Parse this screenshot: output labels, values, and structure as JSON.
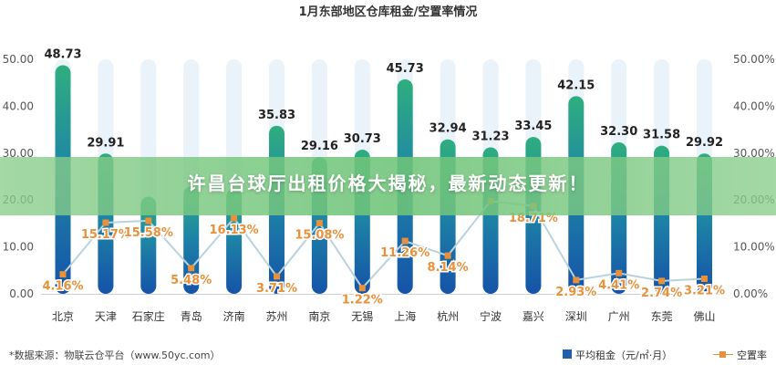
{
  "chart_data": {
    "type": "bar",
    "title": "1月东部地区仓库租金/空置率情况",
    "categories": [
      "北京",
      "天津",
      "石家庄",
      "青岛",
      "济南",
      "苏州",
      "南京",
      "无锡",
      "上海",
      "杭州",
      "宁波",
      "嘉兴",
      "深圳",
      "广州",
      "东莞",
      "佛山"
    ],
    "series": [
      {
        "name": "平均租金（元/㎡·月）",
        "type": "bar",
        "axis": "left",
        "values": [
          48.73,
          29.91,
          20.73,
          22.95,
          22.38,
          35.83,
          29.16,
          30.73,
          45.73,
          32.94,
          31.23,
          33.45,
          42.15,
          32.3,
          31.58,
          29.92
        ],
        "labels": [
          "48.73",
          "29.91",
          "",
          "",
          "",
          "35.83",
          "29.16",
          "30.73",
          "45.73",
          "32.94",
          "31.23",
          "33.45",
          "42.15",
          "32.30",
          "31.58",
          "29.92"
        ]
      },
      {
        "name": "空置率",
        "type": "line",
        "axis": "right",
        "values": [
          4.16,
          15.17,
          15.58,
          5.48,
          16.13,
          3.71,
          15.08,
          1.22,
          11.26,
          8.14,
          19.79,
          18.71,
          2.93,
          4.41,
          2.74,
          3.21
        ],
        "labels": [
          "4.16%",
          "15.17%",
          "15.58%",
          "5.48%",
          "16.13%",
          "3.71%",
          "15.08%",
          "1.22%",
          "11.26%",
          "8.14%",
          "",
          "18.71%",
          "2.93%",
          "4.41%",
          "2.74%",
          "3.21%"
        ]
      }
    ],
    "ylim_left": [
      0,
      50
    ],
    "ylim_right": [
      0,
      50
    ],
    "left_ticks": [
      "0.00",
      "10.00",
      "20.00",
      "30.00",
      "40.00",
      "50.00"
    ],
    "right_ticks": [
      "0.00%",
      "10.00%",
      "20.00%",
      "30.00%",
      "40.00%",
      "50.00%"
    ],
    "colors": {
      "bar_top": "#2fae7e",
      "bar_bottom": "#1553a8",
      "track": "#eaf2fa",
      "line": "#b8d3df",
      "marker": "#e8913a",
      "label": "#e8913a"
    },
    "legend": "bottom-right"
  },
  "banner": {
    "text": "许昌台球厅出租价格大揭秘，最新动态更新！"
  },
  "footer": {
    "source": "*数据来源：物联云仓平台（www.50yc.com）"
  },
  "legend": {
    "bar_label": "平均租金（元/㎡·月）",
    "line_label": "空置率"
  }
}
